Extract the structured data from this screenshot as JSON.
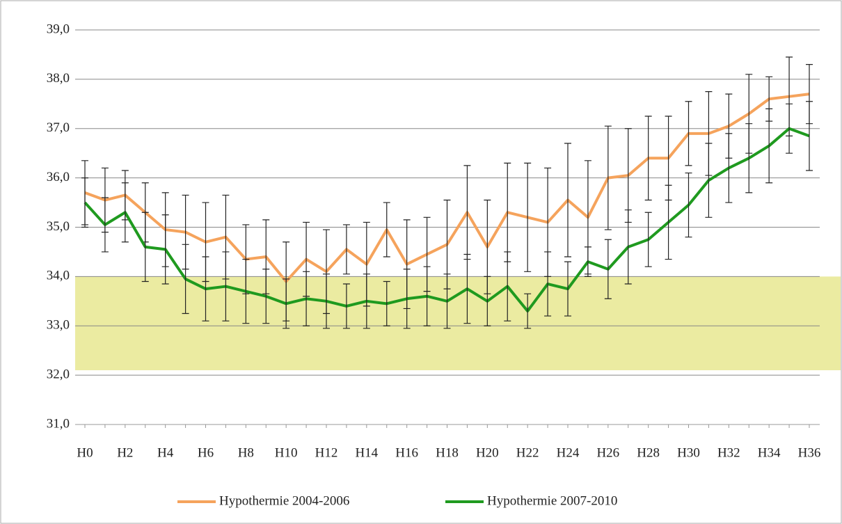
{
  "chart_data": {
    "type": "line",
    "categories": [
      "H0",
      null,
      "H2",
      null,
      "H4",
      null,
      "H6",
      null,
      "H8",
      null,
      "H10",
      null,
      "H12",
      null,
      "H14",
      null,
      "H16",
      null,
      "H18",
      null,
      "H20",
      null,
      "H22",
      null,
      "H24",
      null,
      "H26",
      null,
      "H28",
      null,
      "H30",
      null,
      "H32",
      null,
      "H34",
      null,
      "H36"
    ],
    "series": [
      {
        "name": "Hypothermie 2004-2006",
        "color": "#f5a35c",
        "values": [
          35.7,
          35.55,
          35.65,
          35.3,
          34.95,
          34.9,
          34.7,
          34.8,
          34.35,
          34.4,
          33.9,
          34.35,
          34.1,
          34.55,
          34.25,
          34.95,
          34.25,
          34.45,
          34.65,
          35.3,
          34.6,
          35.3,
          35.2,
          35.1,
          35.55,
          35.2,
          36.0,
          36.05,
          36.4,
          36.4,
          36.9,
          36.9,
          37.05,
          37.3,
          37.6,
          37.65,
          37.7
        ],
        "errors": [
          0.65,
          0.65,
          0.5,
          0.6,
          0.75,
          0.75,
          0.8,
          0.85,
          0.7,
          0.75,
          0.8,
          0.75,
          0.85,
          0.5,
          0.85,
          0.55,
          0.9,
          0.75,
          0.9,
          0.95,
          0.95,
          1.0,
          1.1,
          1.1,
          1.15,
          1.15,
          1.05,
          0.95,
          0.85,
          0.85,
          0.65,
          0.85,
          0.65,
          0.8,
          0.45,
          0.8,
          0.6
        ]
      },
      {
        "name": "Hypothermie 2007-2010",
        "color": "#1f9a1f",
        "values": [
          35.5,
          35.05,
          35.3,
          34.6,
          34.55,
          33.95,
          33.75,
          33.8,
          33.7,
          33.6,
          33.45,
          33.55,
          33.5,
          33.4,
          33.5,
          33.45,
          33.55,
          33.6,
          33.5,
          33.75,
          33.5,
          33.8,
          33.3,
          33.85,
          33.75,
          34.3,
          34.15,
          34.6,
          34.75,
          35.1,
          35.45,
          35.95,
          36.2,
          36.4,
          36.65,
          37.0,
          36.85
        ],
        "errors": [
          0.5,
          0.55,
          0.6,
          0.7,
          0.7,
          0.7,
          0.65,
          0.7,
          0.65,
          0.55,
          0.5,
          0.55,
          0.55,
          0.45,
          0.55,
          0.45,
          0.6,
          0.6,
          0.55,
          0.7,
          0.5,
          0.7,
          0.35,
          0.65,
          0.55,
          0.3,
          0.6,
          0.75,
          0.55,
          0.75,
          0.65,
          0.75,
          0.7,
          0.7,
          0.75,
          0.5,
          0.7
        ]
      }
    ],
    "ylim": [
      31,
      39
    ],
    "yticks": [
      {
        "value": 31,
        "label": "31,0"
      },
      {
        "value": 32,
        "label": "32,0"
      },
      {
        "value": 33,
        "label": "33,0"
      },
      {
        "value": 34,
        "label": "34,0"
      },
      {
        "value": 35,
        "label": "35,0"
      },
      {
        "value": 36,
        "label": "36,0"
      },
      {
        "value": 37,
        "label": "37,0"
      },
      {
        "value": 38,
        "label": "38,0"
      },
      {
        "value": 39,
        "label": "39,0"
      }
    ],
    "grid": true,
    "highlight_range": [
      32.1,
      34.0
    ],
    "highlight_color": "#e6e68a",
    "legend": "bottom"
  }
}
